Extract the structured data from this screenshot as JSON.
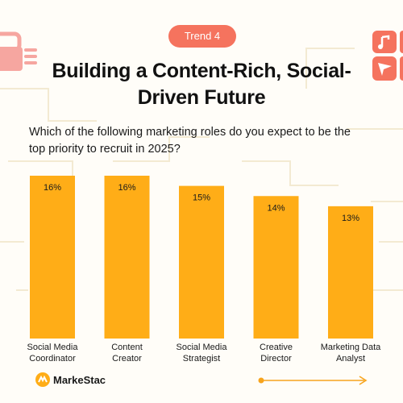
{
  "badge": {
    "label": "Trend 4"
  },
  "header": {
    "title": "Building a Content-Rich, Social-Driven Future"
  },
  "question": "Which of the following marketing roles do you expect to be the top priority to recruit in 2025?",
  "brand": {
    "name": "MarkeStac"
  },
  "colors": {
    "bar": "#ffad17",
    "badge": "#f5735e",
    "accent": "#f5735e",
    "arrow": "#f7a41d"
  },
  "icons": {
    "left_decoration": "lock-icon",
    "right_decoration": "social-tiles-icon",
    "brand_logo": "markestac-logo-icon",
    "footer_arrow": "arrow-right-icon"
  },
  "chart_data": {
    "type": "bar",
    "categories": [
      [
        "Social Media",
        "Coordinator"
      ],
      [
        "Content",
        "Creator"
      ],
      [
        "Social Media",
        "Strategist"
      ],
      [
        "Creative",
        "Director"
      ],
      [
        "Marketing Data",
        "Analyst"
      ]
    ],
    "values": [
      16,
      16,
      15,
      14,
      13
    ],
    "data_labels": [
      "16%",
      "16%",
      "15%",
      "14%",
      "13%"
    ],
    "unit": "%",
    "ylim": [
      0,
      16
    ],
    "grid": false,
    "legend": "none"
  }
}
